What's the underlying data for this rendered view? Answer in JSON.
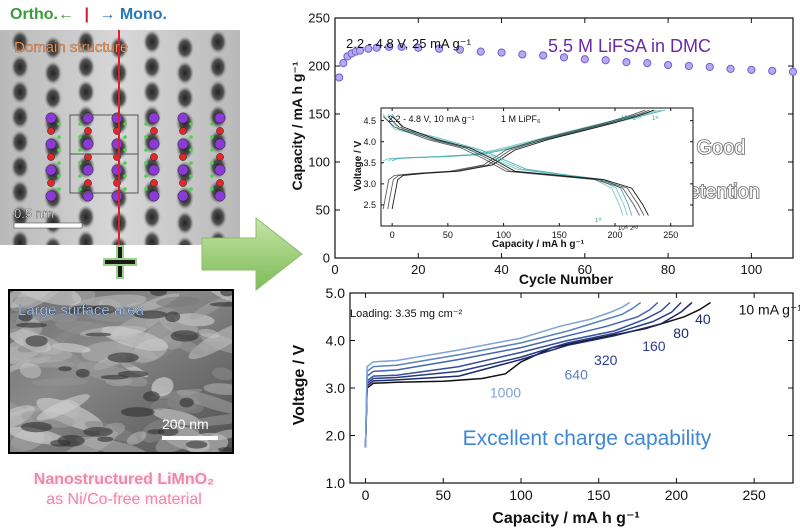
{
  "left_panel": {
    "ortho_label": "Ortho.←",
    "mono_label": "→ Mono.",
    "tem_title": "Domain structure",
    "tem_scale": "0.5 nm",
    "sem_title": "Large surface area",
    "sem_scale": "200 nm",
    "material_name": "Nanostructured LiMnO₂",
    "material_note": "as Ni/Co-free material"
  },
  "overlay_text": {
    "good": "Good",
    "retention": "retention"
  },
  "chart_data": [
    {
      "type": "scatter",
      "annotation": "2.2 - 4.8 V, 25 mA g⁻¹",
      "electrolyte_label": "5.5 M LiFSA in DMC",
      "xlabel": "Cycle Number",
      "ylabel": "Capacity  /  mA h g⁻¹",
      "xlim": [
        0,
        110
      ],
      "ylim": [
        0,
        250
      ],
      "xticks": [
        0,
        20,
        40,
        60,
        80,
        100
      ],
      "yticks": [
        0,
        50,
        100,
        150,
        200,
        250
      ],
      "series": [
        {
          "color": "#7060d0",
          "x": [
            1,
            2,
            3,
            4,
            5,
            6,
            8,
            10,
            13,
            16,
            20,
            25,
            30,
            35,
            40,
            45,
            50,
            55,
            60,
            65,
            70,
            75,
            80,
            85,
            90,
            95,
            100,
            105,
            110
          ],
          "y": [
            188,
            203,
            210,
            213,
            215,
            216,
            218,
            219,
            220,
            220,
            219,
            218,
            217,
            215,
            214,
            212,
            211,
            209,
            207,
            206,
            204,
            203,
            201,
            200,
            199,
            197,
            196,
            195,
            194
          ]
        }
      ]
    },
    {
      "type": "line",
      "annotation": "2.2 - 4.8 V, 10 mA g⁻¹",
      "electrolyte_label": "1 M LiPF₆",
      "xlabel": "Capacity  /  mA h g⁻¹",
      "ylabel": "Voltage  /  V",
      "xlim": [
        -10,
        270
      ],
      "ylim": [
        2.0,
        4.8
      ],
      "xticks": [
        0,
        50,
        100,
        150,
        200,
        250
      ],
      "yticks": [
        2.5,
        3.0,
        3.5,
        4.0,
        4.5
      ],
      "cycle_labels": [
        "1ˢᵗ",
        "10ᵗʰ 2ⁿᵈ",
        "1ˢᵗ",
        "10ᵗʰ 2ⁿᵈ"
      ],
      "series": [
        {
          "color": "#4ab4b0",
          "x": [
            0,
            5,
            20,
            50,
            80,
            100,
            130,
            160,
            190,
            215,
            230,
            245
          ],
          "y": [
            3.55,
            3.6,
            3.62,
            3.65,
            3.7,
            3.8,
            4.0,
            4.2,
            4.4,
            4.55,
            4.65,
            4.75
          ]
        },
        {
          "color": "#1a1a1a",
          "x": [
            0,
            5,
            10,
            30,
            60,
            90,
            110,
            140,
            170,
            200,
            225,
            235
          ],
          "y": [
            2.4,
            3.1,
            3.2,
            3.25,
            3.3,
            3.45,
            3.8,
            4.05,
            4.25,
            4.45,
            4.65,
            4.75
          ]
        },
        {
          "color": "#4ab4b0",
          "x": [
            0,
            10,
            40,
            80,
            120,
            160,
            190,
            205,
            212,
            215
          ],
          "y": [
            4.65,
            4.3,
            4.1,
            3.8,
            3.35,
            3.2,
            3.1,
            2.9,
            2.5,
            2.25
          ]
        },
        {
          "color": "#1a1a1a",
          "x": [
            0,
            10,
            40,
            70,
            90,
            110,
            150,
            190,
            215,
            225,
            230
          ],
          "y": [
            4.6,
            4.35,
            4.05,
            3.85,
            3.6,
            3.3,
            3.2,
            3.1,
            2.9,
            2.5,
            2.25
          ]
        }
      ]
    },
    {
      "type": "line",
      "annotation": "Loading: 3.35 mg cm⁻²",
      "xlabel": "Capacity  /  mA h g⁻¹",
      "ylabel": "Voltage  /  V",
      "xlim": [
        -10,
        275
      ],
      "ylim": [
        1.0,
        5.0
      ],
      "xticks": [
        0,
        50,
        100,
        150,
        200,
        250
      ],
      "yticks": [
        1.0,
        2.0,
        3.0,
        4.0,
        5.0
      ],
      "caption": "Excellent charge capability",
      "series": [
        {
          "name": "10 mA g⁻¹",
          "color": "#111111",
          "x": [
            0,
            1,
            5,
            20,
            50,
            75,
            90,
            100,
            120,
            150,
            180,
            205,
            215,
            222
          ],
          "y": [
            1.75,
            3.0,
            3.1,
            3.12,
            3.14,
            3.2,
            3.3,
            3.55,
            3.85,
            4.05,
            4.25,
            4.5,
            4.65,
            4.8
          ]
        },
        {
          "name": "40",
          "color": "#1e2a6e",
          "x": [
            0,
            1,
            5,
            20,
            60,
            100,
            130,
            160,
            190,
            203,
            210
          ],
          "y": [
            1.75,
            3.05,
            3.15,
            3.17,
            3.25,
            3.6,
            3.9,
            4.1,
            4.35,
            4.6,
            4.8
          ]
        },
        {
          "name": "80",
          "color": "#2a3c86",
          "x": [
            0,
            1,
            5,
            20,
            60,
            100,
            130,
            160,
            185,
            197,
            203
          ],
          "y": [
            1.75,
            3.1,
            3.2,
            3.22,
            3.35,
            3.65,
            3.95,
            4.15,
            4.4,
            4.6,
            4.8
          ]
        },
        {
          "name": "160",
          "color": "#33509e",
          "x": [
            0,
            1,
            5,
            20,
            60,
            100,
            130,
            160,
            180,
            190,
            196
          ],
          "y": [
            1.75,
            3.15,
            3.25,
            3.27,
            3.45,
            3.75,
            4.0,
            4.2,
            4.45,
            4.62,
            4.8
          ]
        },
        {
          "name": "320",
          "color": "#4266b0",
          "x": [
            0,
            1,
            5,
            20,
            60,
            100,
            130,
            155,
            175,
            183,
            188
          ],
          "y": [
            1.75,
            3.25,
            3.35,
            3.38,
            3.6,
            3.85,
            4.1,
            4.3,
            4.5,
            4.65,
            4.8
          ]
        },
        {
          "name": "640",
          "color": "#5a82c0",
          "x": [
            0,
            1,
            5,
            20,
            60,
            100,
            130,
            150,
            165,
            172,
            177
          ],
          "y": [
            1.75,
            3.35,
            3.45,
            3.48,
            3.7,
            3.95,
            4.2,
            4.4,
            4.55,
            4.68,
            4.8
          ]
        },
        {
          "name": "1000",
          "color": "#7ea4d4",
          "x": [
            0,
            1,
            5,
            20,
            60,
            100,
            125,
            145,
            158,
            165,
            170
          ],
          "y": [
            1.75,
            3.45,
            3.55,
            3.58,
            3.8,
            4.05,
            4.3,
            4.45,
            4.6,
            4.7,
            4.8
          ]
        }
      ]
    }
  ]
}
